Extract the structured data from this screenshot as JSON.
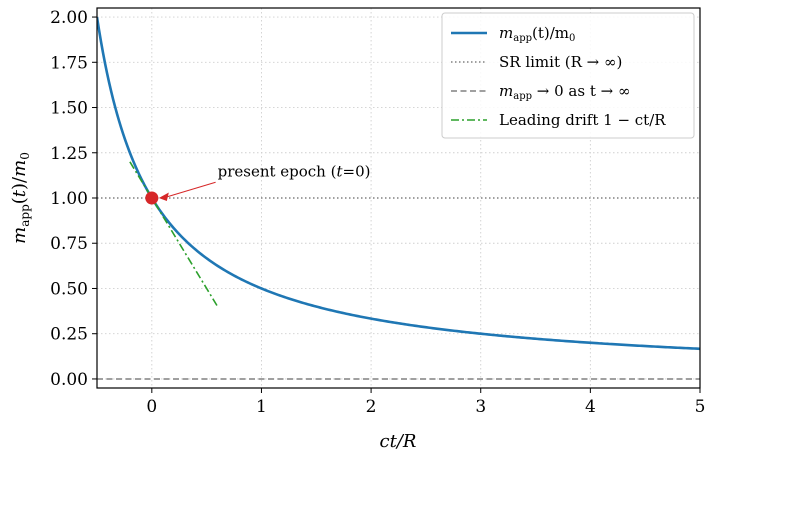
{
  "chart_data": {
    "type": "line",
    "title": "",
    "xlabel": "ct/R",
    "ylabel": "m_app(t)/m_0",
    "xlim": [
      -0.5,
      5
    ],
    "ylim": [
      -0.05,
      2.05
    ],
    "grid": true,
    "x_ticks": [
      0,
      1,
      2,
      3,
      4,
      5
    ],
    "y_ticks": [
      0.0,
      0.25,
      0.5,
      0.75,
      1.0,
      1.25,
      1.5,
      1.75,
      2.0
    ],
    "x_tick_labels": [
      "0",
      "1",
      "2",
      "3",
      "4",
      "5"
    ],
    "y_tick_labels": [
      "0.00",
      "0.25",
      "0.50",
      "0.75",
      "1.00",
      "1.25",
      "1.50",
      "1.75",
      "2.00"
    ],
    "series": [
      {
        "name": "m_app(t)/m_0",
        "style": "solid",
        "color": "#1f77b4",
        "x": [
          -0.5,
          -0.4,
          -0.3,
          -0.2,
          -0.1,
          0,
          0.25,
          0.5,
          0.75,
          1,
          1.5,
          2,
          2.5,
          3,
          3.5,
          4,
          4.5,
          5
        ],
        "y": [
          2.0,
          1.667,
          1.429,
          1.25,
          1.111,
          1.0,
          0.8,
          0.667,
          0.571,
          0.5,
          0.4,
          0.333,
          0.286,
          0.25,
          0.222,
          0.2,
          0.182,
          0.167
        ]
      },
      {
        "name": "SR limit (R → ∞)",
        "style": "dotted",
        "color": "#808080",
        "x": [
          -0.5,
          5
        ],
        "y": [
          1.0,
          1.0
        ]
      },
      {
        "name": "m_app → 0 as t → ∞",
        "style": "dashed",
        "color": "#808080",
        "x": [
          -0.5,
          5
        ],
        "y": [
          0.0,
          0.0
        ]
      },
      {
        "name": "Leading drift 1 − ct/R",
        "style": "dashdot",
        "color": "#2ca02c",
        "x": [
          -0.2,
          0.6
        ],
        "y": [
          1.2,
          0.4
        ]
      }
    ],
    "annotations": [
      {
        "text": "present epoch (t=0)",
        "point": [
          0,
          1.0
        ],
        "text_pos": [
          0.6,
          1.12
        ]
      }
    ],
    "marker": {
      "x": 0,
      "y": 1.0,
      "color": "#d62728"
    },
    "legend": {
      "placement": "top-right",
      "entries": [
        {
          "main": "m",
          "sub": "app",
          "rest": "(t)/m",
          "sub2": "0"
        },
        {
          "main": "SR limit (R → ∞)"
        },
        {
          "main": "m",
          "sub": "app",
          "rest": " → 0 as t → ∞"
        },
        {
          "main": "Leading drift 1 − ct/R"
        }
      ]
    }
  },
  "footer": {
    "text": ""
  }
}
